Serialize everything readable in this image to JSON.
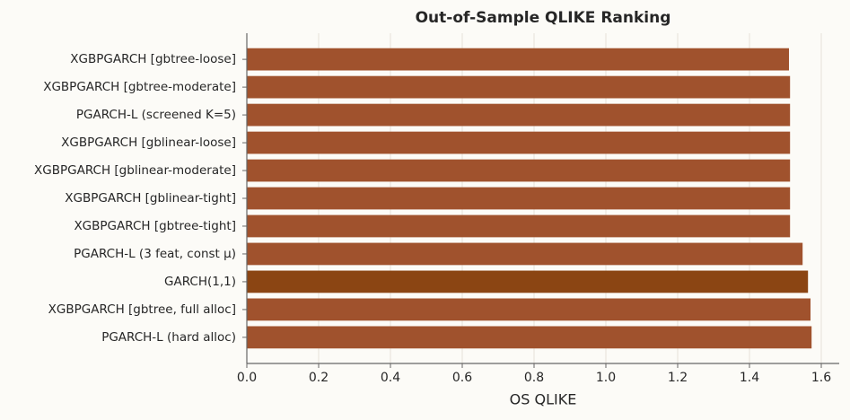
{
  "chart_data": {
    "type": "barh",
    "title": "Out-of-Sample QLIKE Ranking",
    "xlabel": "OS QLIKE",
    "categories": [
      "XGBPGARCH [gbtree-loose]",
      "XGBPGARCH [gbtree-moderate]",
      "PGARCH-L (screened K=5)",
      "XGBPGARCH [gblinear-loose]",
      "XGBPGARCH [gblinear-moderate]",
      "XGBPGARCH [gblinear-tight]",
      "XGBPGARCH [gbtree-tight]",
      "PGARCH-L (3 feat, const μ)",
      "GARCH(1,1)",
      "XGBPGARCH [gbtree, full alloc]",
      "PGARCH-L (hard alloc)"
    ],
    "values": [
      1.51,
      1.513,
      1.513,
      1.513,
      1.513,
      1.513,
      1.513,
      1.548,
      1.563,
      1.57,
      1.573
    ],
    "colors": [
      "#a0522d",
      "#a0522d",
      "#a0522d",
      "#a0522d",
      "#a0522d",
      "#a0522d",
      "#a0522d",
      "#a0522d",
      "#8b4513",
      "#a0522d",
      "#a0522d"
    ],
    "xlim": [
      0,
      1.65
    ],
    "xticks": [
      {
        "value": 0,
        "label": "0.0"
      },
      0.2,
      0.4,
      0.6,
      0.8,
      {
        "value": 1,
        "label": "1.0"
      },
      1.2,
      1.4,
      1.6
    ],
    "grid": true
  }
}
